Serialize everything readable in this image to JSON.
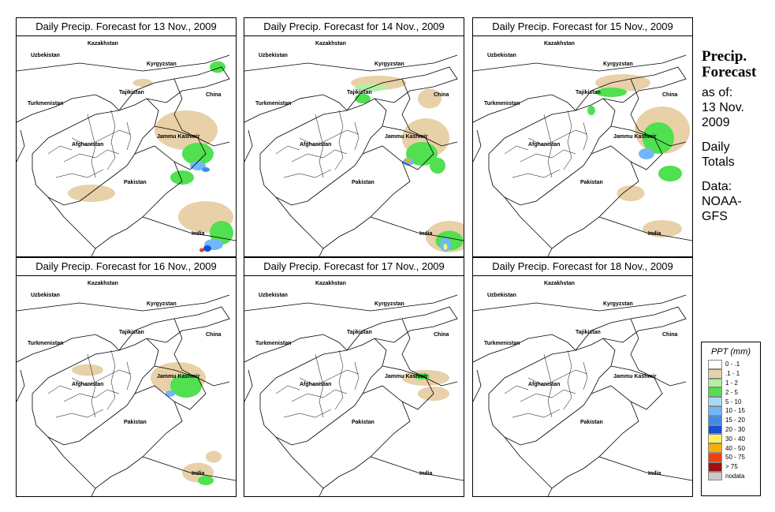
{
  "panels": [
    {
      "title": "Daily Precip. Forecast for  13 Nov., 2009"
    },
    {
      "title": "Daily Precip. Forecast for  14 Nov., 2009"
    },
    {
      "title": "Daily Precip. Forecast for  15 Nov., 2009"
    },
    {
      "title": "Daily Precip. Forecast for  16 Nov., 2009"
    },
    {
      "title": "Daily Precip. Forecast for  17 Nov., 2009"
    },
    {
      "title": "Daily Precip. Forecast for  18 Nov., 2009"
    }
  ],
  "places": {
    "kazakhstan": "Kazakhstan",
    "uzbekistan": "Uzbekistan",
    "kyrgyzstan": "Kyrgyzstan",
    "tajikistan": "Tajikistan",
    "turkmenistan": "Turkmenistan",
    "china": "China",
    "jammu_kashmir": "Jammu Kashmir",
    "afghanistan": "Afghanistan",
    "pakistan": "Pakistan",
    "india": "India"
  },
  "side": {
    "title_line1": "Precip.",
    "title_line2": "Forecast",
    "asof_line1": "as of:",
    "asof_line2": "13 Nov.",
    "asof_line3": "2009",
    "totals_line1": "Daily",
    "totals_line2": "Totals",
    "data_line1": "Data:",
    "data_line2": "NOAA-",
    "data_line3": "GFS"
  },
  "legend": {
    "title": "PPT (mm)",
    "items": [
      {
        "label": "0 - .1",
        "color": "#ffffff"
      },
      {
        "label": ".1 - 1",
        "color": "#e8d0a8"
      },
      {
        "label": "1 - 2",
        "color": "#b4f0a0"
      },
      {
        "label": "2 - 5",
        "color": "#50e050"
      },
      {
        "label": "5 - 10",
        "color": "#a8d8f8"
      },
      {
        "label": "10 - 15",
        "color": "#70b8f8"
      },
      {
        "label": "15 - 20",
        "color": "#3c8cf0"
      },
      {
        "label": "20 - 30",
        "color": "#1450d8"
      },
      {
        "label": "30 - 40",
        "color": "#f8f060"
      },
      {
        "label": "40 - 50",
        "color": "#f8b000"
      },
      {
        "label": "50 - 75",
        "color": "#f04010"
      },
      {
        "label": "> 75",
        "color": "#a01010"
      },
      {
        "label": "nodata",
        "color": "#c8c8c8"
      }
    ]
  }
}
